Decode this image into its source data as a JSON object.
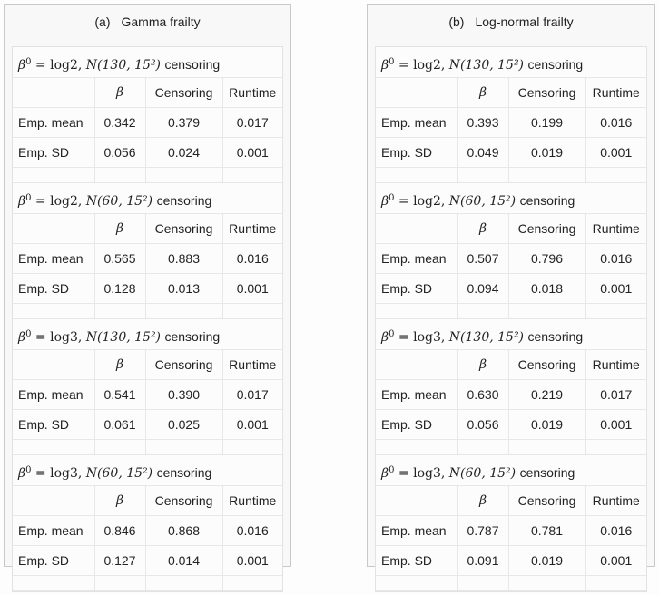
{
  "panels": [
    {
      "label": "(a)",
      "title": "Gamma frailty",
      "headers": [
        "",
        "β",
        "Censoring",
        "Runtime"
      ],
      "blocks": [
        {
          "beta_val": "log2",
          "dist": "N(130, 15²)",
          "suffix": "censoring",
          "rows": [
            [
              "Emp. mean",
              "0.342",
              "0.379",
              "0.017"
            ],
            [
              "Emp. SD",
              "0.056",
              "0.024",
              "0.001"
            ]
          ]
        },
        {
          "beta_val": "log2",
          "dist": "N(60, 15²)",
          "suffix": "censoring",
          "rows": [
            [
              "Emp. mean",
              "0.565",
              "0.883",
              "0.016"
            ],
            [
              "Emp. SD",
              "0.128",
              "0.013",
              "0.001"
            ]
          ]
        },
        {
          "beta_val": "log3",
          "dist": "N(130, 15²)",
          "suffix": "censoring",
          "rows": [
            [
              "Emp. mean",
              "0.541",
              "0.390",
              "0.017"
            ],
            [
              "Emp. SD",
              "0.061",
              "0.025",
              "0.001"
            ]
          ]
        },
        {
          "beta_val": "log3",
          "dist": "N(60, 15²)",
          "suffix": "censoring",
          "rows": [
            [
              "Emp. mean",
              "0.846",
              "0.868",
              "0.016"
            ],
            [
              "Emp. SD",
              "0.127",
              "0.014",
              "0.001"
            ]
          ]
        }
      ]
    },
    {
      "label": "(b)",
      "title": "Log-normal frailty",
      "headers": [
        "",
        "β",
        "Censoring",
        "Runtime"
      ],
      "blocks": [
        {
          "beta_val": "log2",
          "dist": "N(130, 15²)",
          "suffix": "censoring",
          "rows": [
            [
              "Emp. mean",
              "0.393",
              "0.199",
              "0.016"
            ],
            [
              "Emp. SD",
              "0.049",
              "0.019",
              "0.001"
            ]
          ]
        },
        {
          "beta_val": "log2",
          "dist": "N(60, 15²)",
          "suffix": "censoring",
          "rows": [
            [
              "Emp. mean",
              "0.507",
              "0.796",
              "0.016"
            ],
            [
              "Emp. SD",
              "0.094",
              "0.018",
              "0.001"
            ]
          ]
        },
        {
          "beta_val": "log3",
          "dist": "N(130, 15²)",
          "suffix": "censoring",
          "rows": [
            [
              "Emp. mean",
              "0.630",
              "0.219",
              "0.017"
            ],
            [
              "Emp. SD",
              "0.056",
              "0.019",
              "0.001"
            ]
          ]
        },
        {
          "beta_val": "log3",
          "dist": "N(60, 15²)",
          "suffix": "censoring",
          "rows": [
            [
              "Emp. mean",
              "0.787",
              "0.781",
              "0.016"
            ],
            [
              "Emp. SD",
              "0.091",
              "0.019",
              "0.001"
            ]
          ]
        }
      ]
    }
  ]
}
